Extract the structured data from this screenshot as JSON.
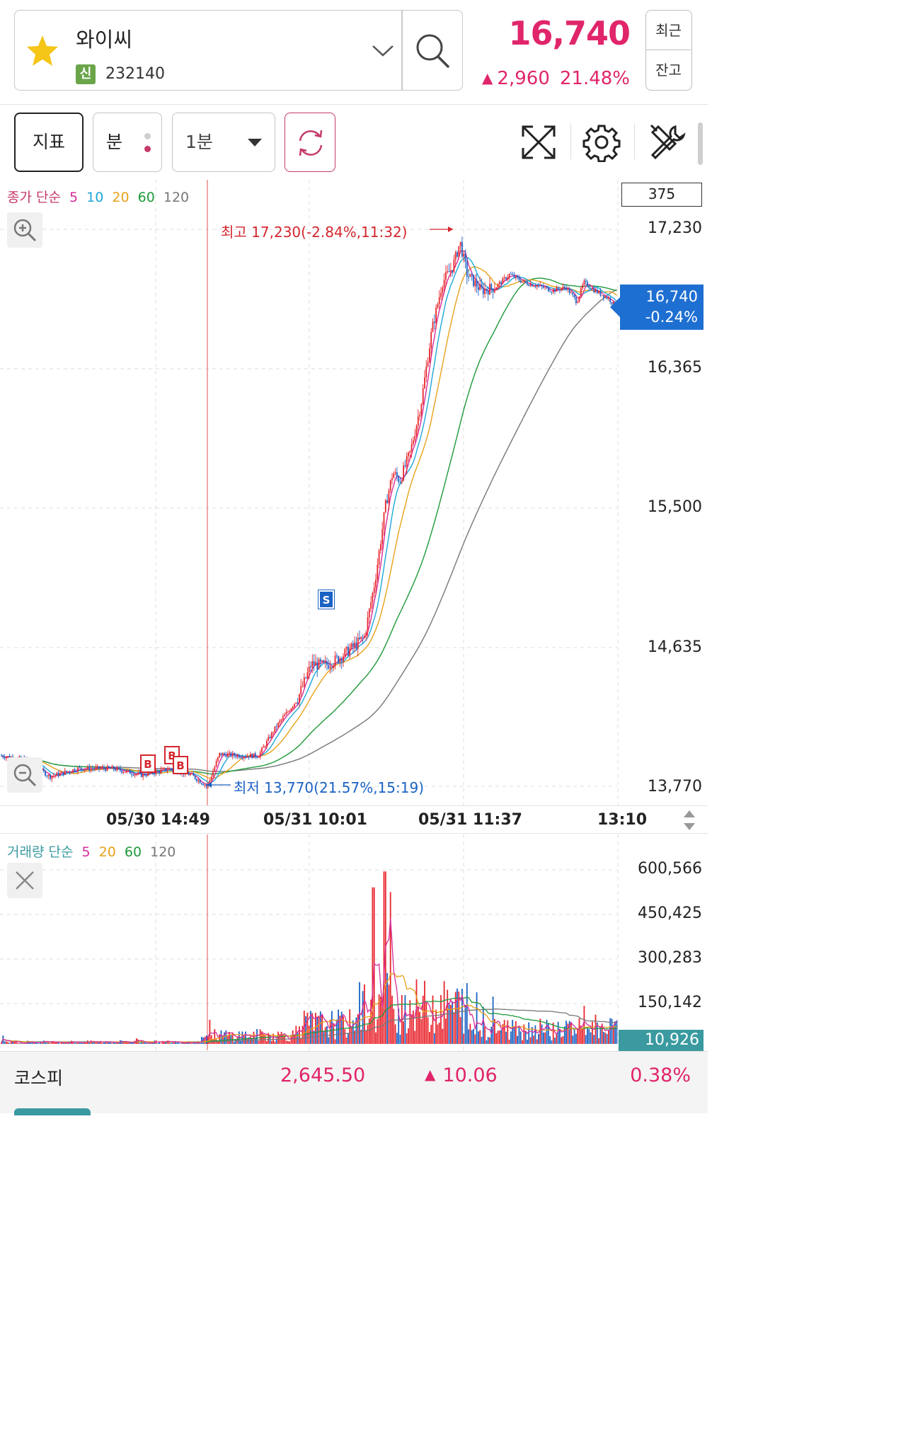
{
  "header": {
    "stock_name": "와이씨",
    "credit_badge": "신",
    "stock_code": "232140",
    "price": "16,740",
    "change": "2,960",
    "change_pct": "21.48%",
    "recent_label": "최근",
    "balance_label": "잔고"
  },
  "toolbar": {
    "indicator_label": "지표",
    "minute_label": "분",
    "interval_label": "1분"
  },
  "price_chart": {
    "legend_prefix": "종가 단순",
    "ma_periods": [
      "5",
      "10",
      "20",
      "60",
      "120"
    ],
    "count": "375",
    "y_labels": [
      "17,230",
      "16,365",
      "15,500",
      "14,635",
      "13,770"
    ],
    "current_price": "16,740",
    "current_pct": "-0.24%",
    "high_annotation": "최고 17,230(-2.84%,11:32)",
    "low_annotation": "최저 13,770(21.57%,15:19)",
    "buy_signal": "B",
    "sell_signal": "S"
  },
  "x_axis": {
    "labels": [
      "05/30 14:49",
      "05/31 10:01",
      "05/31 11:37",
      "13:10"
    ]
  },
  "volume_chart": {
    "legend_prefix": "거래량 단순",
    "ma_periods": [
      "5",
      "20",
      "60",
      "120"
    ],
    "y_labels": [
      "600,566",
      "450,425",
      "300,283",
      "150,142"
    ],
    "current_volume": "10,926"
  },
  "footer": {
    "index_name": "코스피",
    "index_value": "2,645.50",
    "index_change": "10.06",
    "index_pct": "0.38%"
  },
  "colors": {
    "up": "#e0256b",
    "down": "#1b62c4",
    "ma5": "#d62d9a",
    "ma10": "#1ea7d8",
    "ma20": "#e6a21a",
    "ma60": "#1e9a3a",
    "ma120": "#777777"
  },
  "chart_data": {
    "type": "candlestick",
    "price_range": [
      13770,
      17230
    ],
    "x_ticks": [
      "05/30 14:49",
      "05/31 10:01",
      "05/31 11:37",
      "13:10"
    ],
    "high": 17230,
    "low": 13770,
    "last": 16740,
    "series_ma": [
      "5",
      "10",
      "20",
      "60",
      "120"
    ],
    "volume_range": [
      0,
      600566
    ]
  }
}
